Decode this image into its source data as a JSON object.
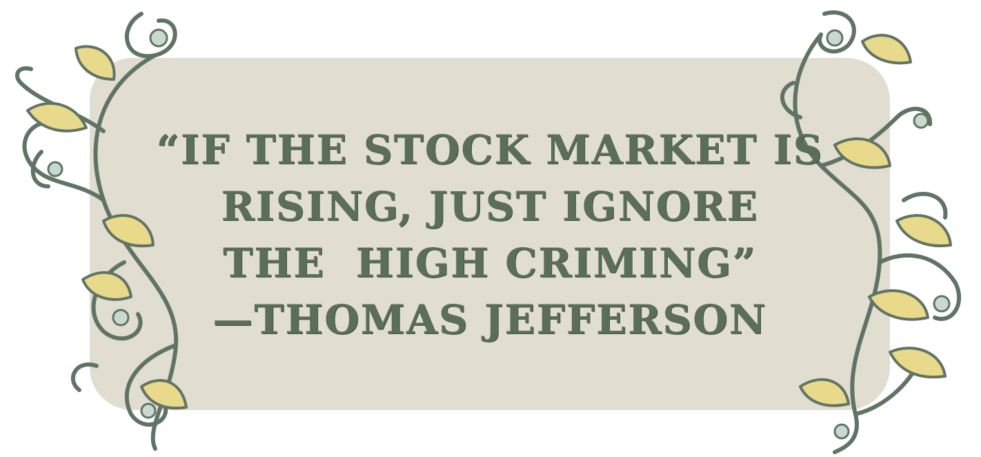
{
  "quote": {
    "line1": "“IF THE STOCK MARKET IS",
    "line2": "RISING, JUST IGNORE",
    "line3": "THE  HIGH CRIMING”",
    "line4": "—THOMAS JEFFERSON"
  },
  "colors": {
    "panel": "#e1ddd1",
    "text": "#5a6e5a",
    "ornament_stroke": "#5f7464",
    "ornament_leaf": "#e9d98a",
    "ornament_tint": "#c9d9cf"
  },
  "ornaments": {
    "left_icon": "scroll-flourish-icon",
    "right_icon": "scroll-flourish-icon"
  }
}
